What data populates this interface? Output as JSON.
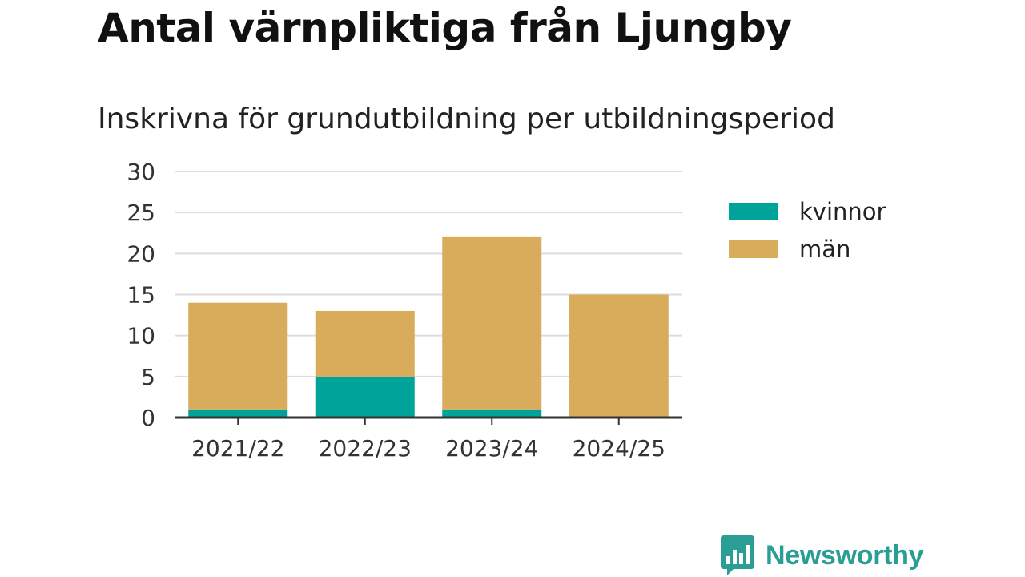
{
  "title": "Antal värnpliktiga från Ljungby",
  "subtitle": "Inskrivna för grundutbildning per utbildningsperiod",
  "brand": {
    "name": "Newsworthy",
    "icon": "newsworthy-logo-icon",
    "color": "#2a9d94"
  },
  "colors": {
    "kvinnor": "#00a39a",
    "man": "#d9ac5c",
    "grid": "#dddddd",
    "axis": "#333333"
  },
  "chart_data": {
    "type": "bar",
    "stacked": true,
    "title": "Antal värnpliktiga från Ljungby",
    "subtitle": "Inskrivna för grundutbildning per utbildningsperiod",
    "categories": [
      "2021/22",
      "2022/23",
      "2023/24",
      "2024/25"
    ],
    "series": [
      {
        "name": "kvinnor",
        "values": [
          1,
          5,
          1,
          0
        ]
      },
      {
        "name": "män",
        "values": [
          13,
          8,
          21,
          15
        ]
      }
    ],
    "ylim": [
      0,
      30
    ],
    "yticks": [
      "0",
      "5",
      "10",
      "15",
      "20",
      "25",
      "30"
    ],
    "xlabel": "",
    "ylabel": "",
    "grid": true,
    "legend": "right"
  }
}
